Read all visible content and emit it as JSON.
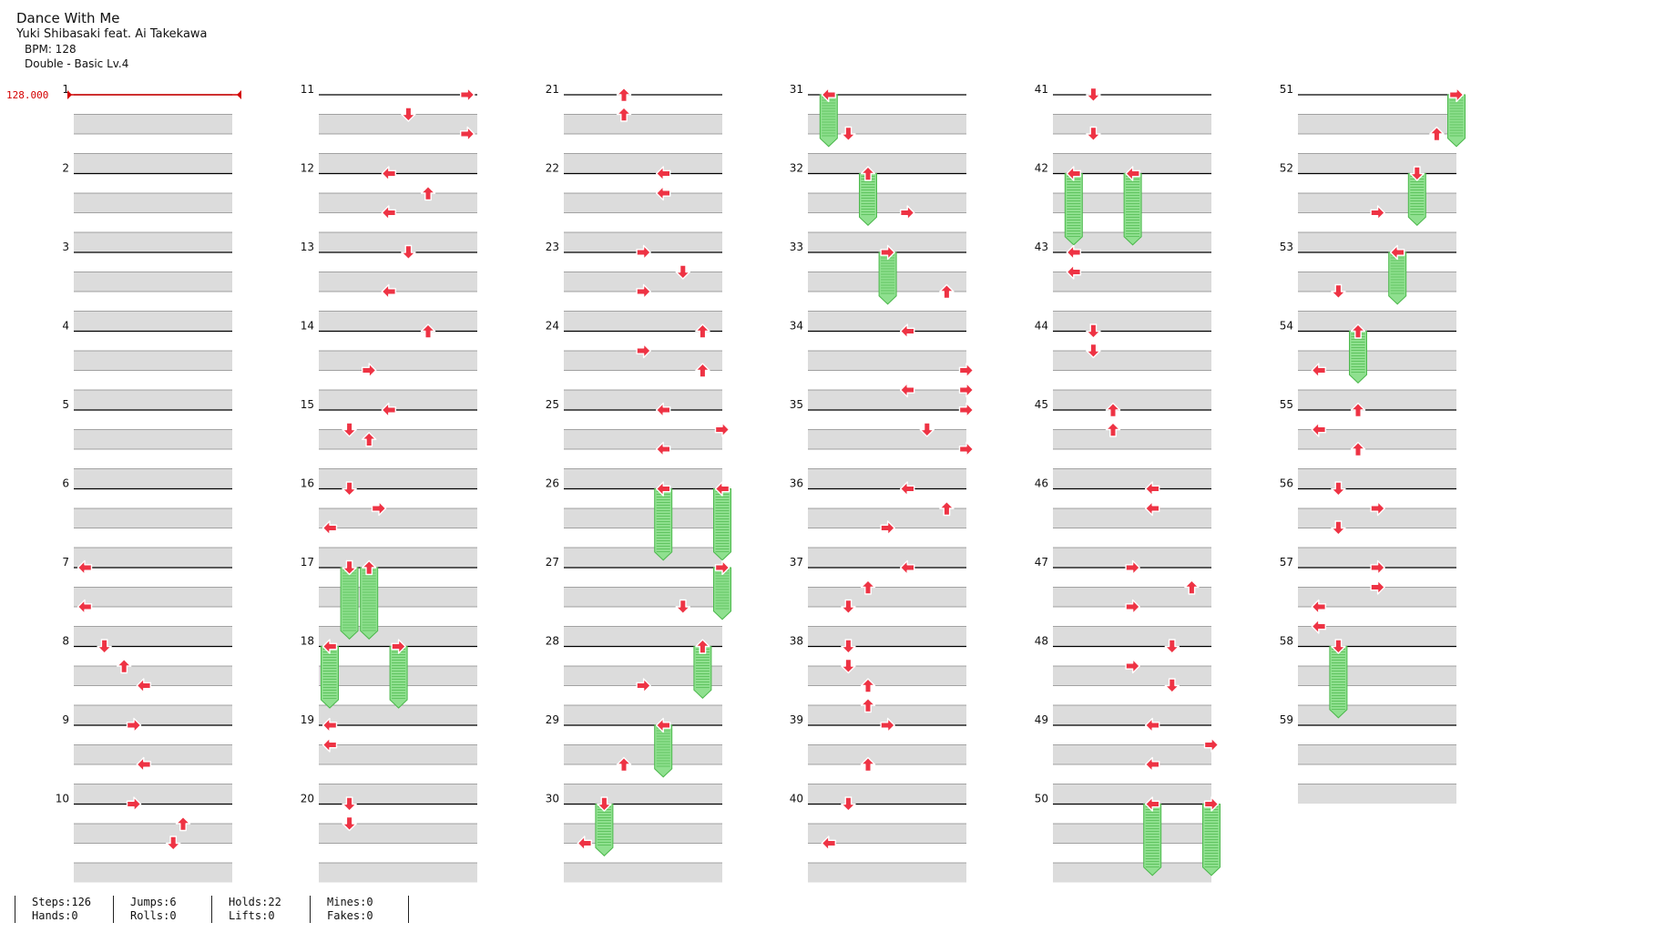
{
  "song": {
    "title": "Dance With Me",
    "artist": "Yuki Shibasaki feat. Ai Takekawa",
    "bpm_label": "BPM: 128",
    "difficulty_label": "Double - Basic  Lv.4"
  },
  "bpm_marker": "128.000",
  "colors": {
    "arrow_fill": "#ee3344",
    "arrow_outline": "#ffffff",
    "hold_fill": "#8fe08f",
    "hold_stripe": "#4cb84c",
    "band": "#dcdcdc",
    "measure_line": "#000000",
    "bpm": "#d40000"
  },
  "stats": [
    {
      "a": "Steps:126",
      "b": "Hands:0"
    },
    {
      "a": "Jumps:6",
      "b": "Rolls:0"
    },
    {
      "a": "Holds:22",
      "b": "Lifts:0"
    },
    {
      "a": "Mines:0",
      "b": "Fakes:0"
    }
  ],
  "measures": [
    {
      "n": 1,
      "notes": []
    },
    {
      "n": 2,
      "notes": []
    },
    {
      "n": 3,
      "notes": []
    },
    {
      "n": 4,
      "notes": []
    },
    {
      "n": 5,
      "notes": []
    },
    {
      "n": 6,
      "notes": []
    },
    {
      "n": 7,
      "notes": [
        {
          "b": 0,
          "l": 0,
          "d": "left"
        },
        {
          "b": 2,
          "l": 0,
          "d": "left"
        }
      ]
    },
    {
      "n": 8,
      "notes": [
        {
          "b": 0,
          "l": 1,
          "d": "down"
        },
        {
          "b": 1,
          "l": 2,
          "d": "up"
        },
        {
          "b": 2,
          "l": 3,
          "d": "left"
        }
      ]
    },
    {
      "n": 9,
      "notes": [
        {
          "b": 0,
          "l": 2.5,
          "d": "right"
        },
        {
          "b": 2,
          "l": 3,
          "d": "left"
        }
      ]
    },
    {
      "n": 10,
      "notes": [
        {
          "b": 0,
          "l": 2.5,
          "d": "right"
        },
        {
          "b": 1,
          "l": 5,
          "d": "up"
        },
        {
          "b": 2,
          "l": 4.5,
          "d": "down"
        }
      ]
    },
    {
      "n": 11,
      "notes": [
        {
          "b": 0,
          "l": 7,
          "d": "right"
        },
        {
          "b": 1,
          "l": 4,
          "d": "down"
        },
        {
          "b": 2,
          "l": 7,
          "d": "right"
        }
      ]
    },
    {
      "n": 12,
      "notes": [
        {
          "b": 0,
          "l": 3,
          "d": "left"
        },
        {
          "b": 1,
          "l": 5,
          "d": "up"
        },
        {
          "b": 2,
          "l": 3,
          "d": "left"
        }
      ]
    },
    {
      "n": 13,
      "notes": [
        {
          "b": 0,
          "l": 4,
          "d": "down"
        },
        {
          "b": 2,
          "l": 3,
          "d": "left"
        }
      ]
    },
    {
      "n": 14,
      "notes": [
        {
          "b": 0,
          "l": 5,
          "d": "up"
        },
        {
          "b": 2,
          "l": 2,
          "d": "right"
        }
      ]
    },
    {
      "n": 15,
      "notes": [
        {
          "b": 0,
          "l": 3,
          "d": "left"
        },
        {
          "b": 1,
          "l": 1,
          "d": "down"
        },
        {
          "b": 1.5,
          "l": 2,
          "d": "up"
        }
      ]
    },
    {
      "n": 16,
      "notes": [
        {
          "b": 0,
          "l": 1,
          "d": "down"
        },
        {
          "b": 1,
          "l": 2.5,
          "d": "right"
        },
        {
          "b": 2,
          "l": 0,
          "d": "left"
        }
      ]
    },
    {
      "n": 17,
      "notes": [
        {
          "b": 0,
          "l": 1,
          "d": "down",
          "hold": 3.5
        },
        {
          "b": 0,
          "l": 2,
          "d": "up",
          "hold": 3.5
        }
      ]
    },
    {
      "n": 18,
      "notes": [
        {
          "b": 0,
          "l": 0,
          "d": "left",
          "hold": 3
        },
        {
          "b": 0,
          "l": 3.5,
          "d": "right",
          "hold": 3
        }
      ]
    },
    {
      "n": 19,
      "notes": [
        {
          "b": 0,
          "l": 0,
          "d": "left"
        },
        {
          "b": 1,
          "l": 0,
          "d": "left"
        }
      ]
    },
    {
      "n": 20,
      "notes": [
        {
          "b": 0,
          "l": 1,
          "d": "down"
        },
        {
          "b": 1,
          "l": 1,
          "d": "down"
        }
      ]
    },
    {
      "n": 21,
      "notes": [
        {
          "b": 0,
          "l": 2.5,
          "d": "up"
        },
        {
          "b": 1,
          "l": 2.5,
          "d": "up"
        }
      ]
    },
    {
      "n": 22,
      "notes": [
        {
          "b": 0,
          "l": 4.5,
          "d": "left"
        },
        {
          "b": 1,
          "l": 4.5,
          "d": "left"
        }
      ]
    },
    {
      "n": 23,
      "notes": [
        {
          "b": 0,
          "l": 3.5,
          "d": "right"
        },
        {
          "b": 1,
          "l": 5.5,
          "d": "down"
        },
        {
          "b": 2,
          "l": 3.5,
          "d": "right"
        }
      ]
    },
    {
      "n": 24,
      "notes": [
        {
          "b": 0,
          "l": 6.5,
          "d": "up"
        },
        {
          "b": 1,
          "l": 3.5,
          "d": "right"
        },
        {
          "b": 2,
          "l": 6.5,
          "d": "up"
        }
      ]
    },
    {
      "n": 25,
      "notes": [
        {
          "b": 0,
          "l": 4.5,
          "d": "left"
        },
        {
          "b": 1,
          "l": 7.5,
          "d": "right"
        },
        {
          "b": 2,
          "l": 4.5,
          "d": "left"
        }
      ]
    },
    {
      "n": 26,
      "notes": [
        {
          "b": 0,
          "l": 4.5,
          "d": "left",
          "hold": 3.5
        },
        {
          "b": 0,
          "l": 7.5,
          "d": "left",
          "hold": 3.5
        }
      ]
    },
    {
      "n": 27,
      "notes": [
        {
          "b": 0,
          "l": 7.5,
          "d": "right",
          "hold": 2.5
        },
        {
          "b": 2,
          "l": 5.5,
          "d": "down"
        }
      ]
    },
    {
      "n": 28,
      "notes": [
        {
          "b": 0,
          "l": 6.5,
          "d": "up",
          "hold": 2.5
        },
        {
          "b": 2,
          "l": 3.5,
          "d": "right"
        }
      ]
    },
    {
      "n": 29,
      "notes": [
        {
          "b": 0,
          "l": 4.5,
          "d": "left",
          "hold": 2.5
        },
        {
          "b": 2,
          "l": 2.5,
          "d": "up"
        }
      ]
    },
    {
      "n": 30,
      "notes": [
        {
          "b": 0,
          "l": 1.5,
          "d": "down",
          "hold": 2.5
        },
        {
          "b": 2,
          "l": 0.5,
          "d": "left"
        }
      ]
    },
    {
      "n": 31,
      "notes": [
        {
          "b": 0,
          "l": 0.5,
          "d": "left",
          "hold": 2.5
        },
        {
          "b": 2,
          "l": 1.5,
          "d": "down"
        }
      ]
    },
    {
      "n": 32,
      "notes": [
        {
          "b": 0,
          "l": 2.5,
          "d": "up",
          "hold": 2.5
        },
        {
          "b": 2,
          "l": 4.5,
          "d": "right"
        }
      ]
    },
    {
      "n": 33,
      "notes": [
        {
          "b": 0,
          "l": 3.5,
          "d": "right",
          "hold": 2.5
        },
        {
          "b": 2,
          "l": 6.5,
          "d": "up"
        }
      ]
    },
    {
      "n": 34,
      "notes": [
        {
          "b": 0,
          "l": 4.5,
          "d": "left"
        },
        {
          "b": 2,
          "l": 7.5,
          "d": "right"
        },
        {
          "b": 3,
          "l": 4.5,
          "d": "left"
        },
        {
          "b": 3,
          "l": 7.5,
          "d": "right"
        }
      ]
    },
    {
      "n": 35,
      "notes": [
        {
          "b": 0,
          "l": 7.5,
          "d": "right"
        },
        {
          "b": 1,
          "l": 5.5,
          "d": "down"
        },
        {
          "b": 2,
          "l": 7.5,
          "d": "right"
        }
      ]
    },
    {
      "n": 36,
      "notes": [
        {
          "b": 0,
          "l": 4.5,
          "d": "left"
        },
        {
          "b": 1,
          "l": 6.5,
          "d": "up"
        },
        {
          "b": 2,
          "l": 3.5,
          "d": "right"
        }
      ]
    },
    {
      "n": 37,
      "notes": [
        {
          "b": 0,
          "l": 4.5,
          "d": "left"
        },
        {
          "b": 1,
          "l": 2.5,
          "d": "up"
        },
        {
          "b": 2,
          "l": 1.5,
          "d": "down"
        }
      ]
    },
    {
      "n": 38,
      "notes": [
        {
          "b": 0,
          "l": 1.5,
          "d": "down"
        },
        {
          "b": 1,
          "l": 1.5,
          "d": "down"
        },
        {
          "b": 2,
          "l": 2.5,
          "d": "up"
        },
        {
          "b": 3,
          "l": 2.5,
          "d": "up"
        }
      ]
    },
    {
      "n": 39,
      "notes": [
        {
          "b": 0,
          "l": 3.5,
          "d": "right"
        },
        {
          "b": 2,
          "l": 2.5,
          "d": "up"
        }
      ]
    },
    {
      "n": 40,
      "notes": [
        {
          "b": 0,
          "l": 1.5,
          "d": "down"
        },
        {
          "b": 2,
          "l": 0.5,
          "d": "left"
        }
      ]
    },
    {
      "n": 41,
      "notes": [
        {
          "b": 0,
          "l": 1.5,
          "d": "down"
        },
        {
          "b": 2,
          "l": 1.5,
          "d": "down"
        }
      ]
    },
    {
      "n": 42,
      "notes": [
        {
          "b": 0,
          "l": 0.5,
          "d": "left",
          "hold": 3.5
        },
        {
          "b": 0,
          "l": 3.5,
          "d": "left",
          "hold": 3.5
        }
      ]
    },
    {
      "n": 43,
      "notes": [
        {
          "b": 0,
          "l": 0.5,
          "d": "left"
        },
        {
          "b": 1,
          "l": 0.5,
          "d": "left"
        }
      ]
    },
    {
      "n": 44,
      "notes": [
        {
          "b": 0,
          "l": 1.5,
          "d": "down"
        },
        {
          "b": 1,
          "l": 1.5,
          "d": "down"
        }
      ]
    },
    {
      "n": 45,
      "notes": [
        {
          "b": 0,
          "l": 2.5,
          "d": "up"
        },
        {
          "b": 1,
          "l": 2.5,
          "d": "up"
        }
      ]
    },
    {
      "n": 46,
      "notes": [
        {
          "b": 0,
          "l": 4.5,
          "d": "left"
        },
        {
          "b": 1,
          "l": 4.5,
          "d": "left"
        }
      ]
    },
    {
      "n": 47,
      "notes": [
        {
          "b": 0,
          "l": 3.5,
          "d": "right"
        },
        {
          "b": 1,
          "l": 6.5,
          "d": "up"
        },
        {
          "b": 2,
          "l": 3.5,
          "d": "right"
        }
      ]
    },
    {
      "n": 48,
      "notes": [
        {
          "b": 0,
          "l": 5.5,
          "d": "down"
        },
        {
          "b": 1,
          "l": 3.5,
          "d": "right"
        },
        {
          "b": 2,
          "l": 5.5,
          "d": "down"
        }
      ]
    },
    {
      "n": 49,
      "notes": [
        {
          "b": 0,
          "l": 4.5,
          "d": "left"
        },
        {
          "b": 1,
          "l": 7.5,
          "d": "right"
        },
        {
          "b": 2,
          "l": 4.5,
          "d": "left"
        }
      ]
    },
    {
      "n": 50,
      "notes": [
        {
          "b": 0,
          "l": 4.5,
          "d": "left",
          "hold": 3.5
        },
        {
          "b": 0,
          "l": 7.5,
          "d": "right",
          "hold": 3.5
        }
      ]
    },
    {
      "n": 51,
      "notes": [
        {
          "b": 0,
          "l": 7.5,
          "d": "right",
          "hold": 2.5
        },
        {
          "b": 2,
          "l": 6.5,
          "d": "up"
        }
      ]
    },
    {
      "n": 52,
      "notes": [
        {
          "b": 0,
          "l": 5.5,
          "d": "down",
          "hold": 2.5
        },
        {
          "b": 2,
          "l": 3.5,
          "d": "right"
        }
      ]
    },
    {
      "n": 53,
      "notes": [
        {
          "b": 0,
          "l": 4.5,
          "d": "left",
          "hold": 2.5
        },
        {
          "b": 2,
          "l": 1.5,
          "d": "down"
        }
      ]
    },
    {
      "n": 54,
      "notes": [
        {
          "b": 0,
          "l": 2.5,
          "d": "up",
          "hold": 2.5
        },
        {
          "b": 2,
          "l": 0.5,
          "d": "left"
        }
      ]
    },
    {
      "n": 55,
      "notes": [
        {
          "b": 0,
          "l": 2.5,
          "d": "up"
        },
        {
          "b": 1,
          "l": 0.5,
          "d": "left"
        },
        {
          "b": 2,
          "l": 2.5,
          "d": "up"
        }
      ]
    },
    {
      "n": 56,
      "notes": [
        {
          "b": 0,
          "l": 1.5,
          "d": "down"
        },
        {
          "b": 1,
          "l": 3.5,
          "d": "right"
        },
        {
          "b": 2,
          "l": 1.5,
          "d": "down"
        }
      ]
    },
    {
      "n": 57,
      "notes": [
        {
          "b": 0,
          "l": 3.5,
          "d": "right"
        },
        {
          "b": 1,
          "l": 3.5,
          "d": "right"
        },
        {
          "b": 2,
          "l": 0.5,
          "d": "left"
        },
        {
          "b": 3,
          "l": 0.5,
          "d": "left"
        }
      ]
    },
    {
      "n": 58,
      "notes": [
        {
          "b": 0,
          "l": 1.5,
          "d": "down",
          "hold": 3.5
        }
      ]
    },
    {
      "n": 59,
      "notes": []
    }
  ]
}
